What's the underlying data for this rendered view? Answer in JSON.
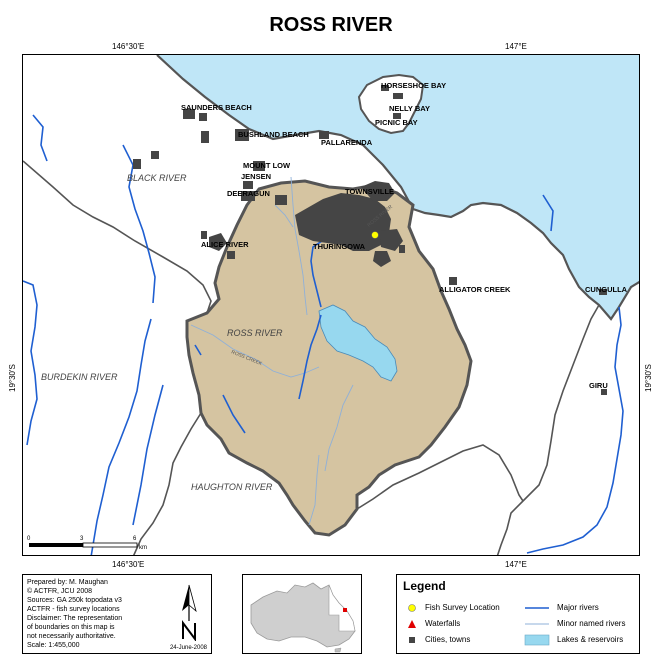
{
  "title": "ROSS RIVER",
  "coordinates": {
    "top_left": "146°30'E",
    "top_right": "147°E",
    "bottom_left": "146°30'E",
    "bottom_right": "147°E",
    "left": "19°30'S",
    "right": "19°30'S"
  },
  "places": {
    "saunders_beach": "SAUNDERS BEACH",
    "bushland_beach": "BUSHLAND BEACH",
    "pallarenda": "PALLARENDA",
    "horseshoe_bay": "HORSESHOE BAY",
    "nelly_bay": "NELLY BAY",
    "picnic_bay": "PICNIC BAY",
    "mount_low": "MOUNT LOW",
    "jensen": "JENSEN",
    "deeragun": "DEERAGUN",
    "townsville": "TOWNSVILLE",
    "thuringowa": "THURINGOWA",
    "alice_river": "ALICE RIVER",
    "alligator_creek": "ALLIGATOR CREEK",
    "cungulla": "CUNGULLA",
    "giru": "GIRU"
  },
  "regions": {
    "black_river": "BLACK RIVER",
    "ross_river": "ROSS RIVER",
    "burdekin_river": "BURDEKIN RIVER",
    "haughton_river": "HAUGHTON RIVER"
  },
  "minor_labels": {
    "ross_creek": "ROSS CREEK",
    "ross_river_small": "ROSS RIVER"
  },
  "scale_bar": {
    "labels": [
      "0",
      "3",
      "6"
    ],
    "unit": "km"
  },
  "credits": {
    "lines": [
      "Prepared  by:  M.  Maughan",
      "©      ACTFR,      JCU      2008",
      "Sources: GA 250k topodata v3",
      "ACTFR - fish survey locations",
      "Disclaimer: The representation",
      "of boundaries on this map is",
      "not  necessarily  authoritative.",
      "Scale:  1:455,000"
    ],
    "date": "24-June-2008"
  },
  "legend": {
    "title": "Legend",
    "items": [
      {
        "label": "Fish Survey Location",
        "symbol": "yellow-circle"
      },
      {
        "label": "Waterfalls",
        "symbol": "red-triangle"
      },
      {
        "label": "Cities, towns",
        "symbol": "grey-square"
      },
      {
        "label": "Major rivers",
        "symbol": "blue-line"
      },
      {
        "label": "Minor named rivers",
        "symbol": "light-blue-line"
      },
      {
        "label": "Lakes & reservoirs",
        "symbol": "light-blue-box"
      }
    ]
  },
  "colors": {
    "sea": "#bfe6f7",
    "catchment": "#d5c4a1",
    "urban": "#454545",
    "major_river": "#1f5fd1",
    "minor_river": "#8fb0d8",
    "lake": "#97d8ef",
    "survey_point": "#ffff00",
    "waterfall": "#e00000"
  }
}
